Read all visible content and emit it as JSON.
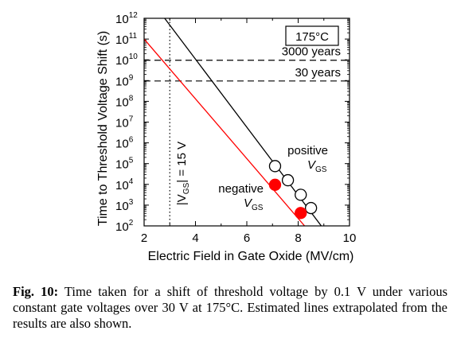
{
  "chart_data": {
    "type": "scatter",
    "title": "",
    "xlabel": "Electric Field in Gate Oxide (MV/cm)",
    "ylabel": "Time to Threshold Voltage Shift (s)",
    "xlim": [
      2,
      10
    ],
    "x_ticks": [
      "2",
      "4",
      "6",
      "8",
      "10"
    ],
    "ylim_log10": [
      2,
      12
    ],
    "y_scale": "log",
    "y_tick_base": "10",
    "y_tick_exponents": [
      "2",
      "3",
      "4",
      "5",
      "6",
      "7",
      "8",
      "9",
      "10",
      "11",
      "12"
    ],
    "temperature_label": "175°C",
    "reference_lines": [
      {
        "label": "3000 years",
        "y_log10": 9.98
      },
      {
        "label": "30 years",
        "y_log10": 8.98
      }
    ],
    "vertical_line": {
      "x": 3.0,
      "label_prefix": "|V",
      "label_sub": "GS",
      "label_suffix": "| = 15 V"
    },
    "series": [
      {
        "name_main": "positive",
        "name_v": "V",
        "name_sub": "GS",
        "color": "#000000",
        "marker": "open-circle",
        "points": [
          {
            "x": 7.1,
            "y_log10": 4.88
          },
          {
            "x": 7.6,
            "y_log10": 4.2
          },
          {
            "x": 8.1,
            "y_log10": 3.5
          },
          {
            "x": 8.5,
            "y_log10": 2.86
          }
        ],
        "fit_line": [
          {
            "x": 2.8,
            "y_log10": 12.0
          },
          {
            "x": 8.9,
            "y_log10": 2.0
          }
        ]
      },
      {
        "name_main": "negative",
        "name_v": "V",
        "name_sub": "GS",
        "color": "#ff0000",
        "marker": "filled-circle",
        "points": [
          {
            "x": 7.1,
            "y_log10": 3.98
          },
          {
            "x": 8.1,
            "y_log10": 2.62
          }
        ],
        "fit_line": [
          {
            "x": 2.0,
            "y_log10": 11.0
          },
          {
            "x": 8.25,
            "y_log10": 2.0
          }
        ]
      }
    ]
  },
  "caption": {
    "label": "Fig. 10:",
    "text": " Time taken for a shift of threshold voltage by 0.1 V under various constant gate voltages over 30 V at 175°C. Estimated lines extrapolated from the results are also shown."
  }
}
